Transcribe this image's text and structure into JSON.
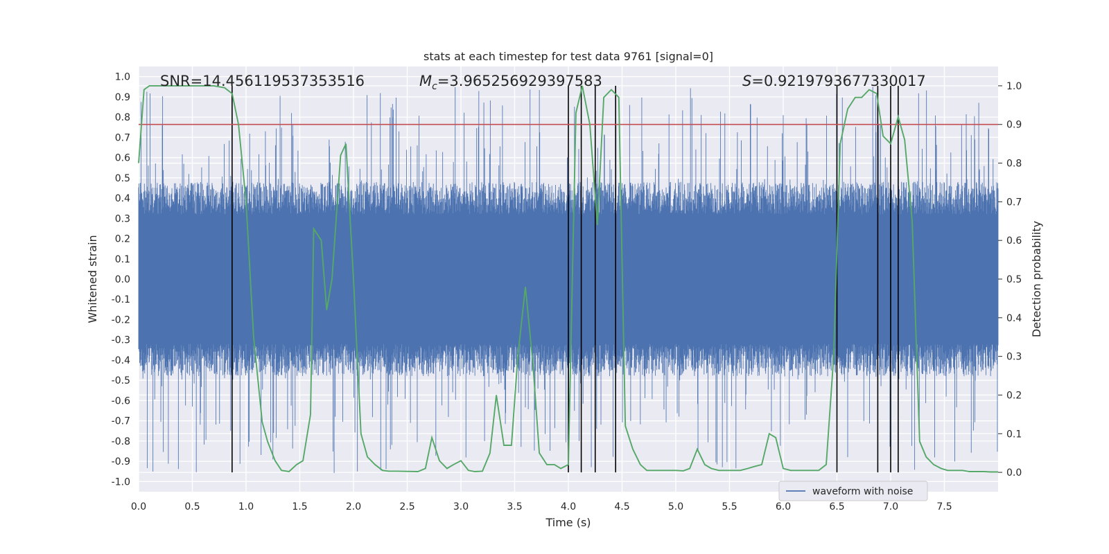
{
  "chart_data": {
    "type": "line",
    "title": "stats at each timestep for test data 9761 [signal=0]",
    "xlabel": "Time (s)",
    "ylabel_left": "Whitened strain",
    "ylabel_right": "Detection probability",
    "xlim": [
      0.0,
      8.0
    ],
    "ylim_left": [
      -1.05,
      1.05
    ],
    "ylim_right": [
      -0.05,
      1.05
    ],
    "x_ticks": [
      "0.0",
      "0.5",
      "1.0",
      "1.5",
      "2.0",
      "2.5",
      "3.0",
      "3.5",
      "4.0",
      "4.5",
      "5.0",
      "5.5",
      "6.0",
      "6.5",
      "7.0",
      "7.5"
    ],
    "y_left_ticks": [
      "1.0",
      "0.9",
      "0.8",
      "0.7",
      "0.6",
      "0.5",
      "0.4",
      "0.3",
      "0.2",
      "0.1",
      "0.0",
      "-0.1",
      "-0.2",
      "-0.3",
      "-0.4",
      "-0.5",
      "-0.6",
      "-0.7",
      "-0.8",
      "-0.9",
      "-1.0"
    ],
    "y_right_ticks": [
      "1.0",
      "0.9",
      "0.8",
      "0.7",
      "0.6",
      "0.5",
      "0.4",
      "0.3",
      "0.2",
      "0.1",
      "0.0"
    ],
    "annotations": {
      "snr_label": "SNR=14.456119537353516",
      "mc_symbol": "M",
      "mc_sub": "c",
      "mc_value": "=3.965256929397583",
      "s_symbol": "S",
      "s_value": "=0.9219793677330017"
    },
    "threshold_line": {
      "value_right_axis": 0.9,
      "color": "#c44e52"
    },
    "vertical_markers_time_s": [
      0.87,
      4.0,
      4.12,
      4.25,
      4.44,
      6.5,
      6.88,
      7.0,
      7.07
    ],
    "series": [
      {
        "name": "waveform with noise",
        "axis": "left",
        "color": "#4c72b0",
        "envelope": {
          "base_amplitude": 0.4,
          "max_peak": 0.95,
          "min_trough": -0.96
        }
      },
      {
        "name": "detection probability",
        "axis": "right",
        "color": "#55a868",
        "x": [
          0.0,
          0.05,
          0.1,
          0.2,
          0.3,
          0.5,
          0.7,
          0.8,
          0.87,
          0.93,
          1.0,
          1.07,
          1.15,
          1.2,
          1.27,
          1.33,
          1.4,
          1.47,
          1.53,
          1.6,
          1.63,
          1.7,
          1.75,
          1.8,
          1.88,
          1.93,
          2.0,
          2.07,
          2.13,
          2.2,
          2.27,
          2.33,
          2.4,
          2.6,
          2.67,
          2.73,
          2.8,
          2.87,
          2.93,
          3.0,
          3.07,
          3.13,
          3.2,
          3.27,
          3.33,
          3.4,
          3.47,
          3.53,
          3.6,
          3.67,
          3.73,
          3.8,
          3.87,
          3.93,
          4.0,
          4.07,
          4.13,
          4.2,
          4.27,
          4.33,
          4.4,
          4.47,
          4.53,
          4.6,
          4.67,
          4.73,
          5.0,
          5.07,
          5.13,
          5.2,
          5.27,
          5.33,
          5.4,
          5.47,
          5.6,
          5.67,
          5.73,
          5.8,
          5.87,
          5.93,
          6.0,
          6.07,
          6.13,
          6.2,
          6.33,
          6.4,
          6.47,
          6.53,
          6.6,
          6.67,
          6.73,
          6.8,
          6.87,
          6.93,
          7.0,
          7.07,
          7.13,
          7.2,
          7.27,
          7.33,
          7.4,
          7.47,
          7.53,
          7.6,
          7.67,
          7.73,
          7.8,
          7.87,
          7.93,
          8.0
        ],
        "values": [
          0.8,
          0.99,
          1.0,
          1.0,
          1.0,
          1.0,
          1.0,
          0.995,
          0.98,
          0.9,
          0.7,
          0.35,
          0.13,
          0.08,
          0.03,
          0.005,
          0.002,
          0.02,
          0.03,
          0.15,
          0.63,
          0.6,
          0.42,
          0.5,
          0.82,
          0.85,
          0.5,
          0.1,
          0.04,
          0.02,
          0.005,
          0.003,
          0.003,
          0.002,
          0.01,
          0.09,
          0.03,
          0.01,
          0.02,
          0.03,
          0.005,
          0.002,
          0.003,
          0.05,
          0.2,
          0.07,
          0.07,
          0.3,
          0.48,
          0.28,
          0.05,
          0.02,
          0.02,
          0.01,
          0.02,
          0.93,
          1.0,
          0.9,
          0.64,
          0.97,
          0.99,
          0.97,
          0.12,
          0.06,
          0.02,
          0.005,
          0.005,
          0.004,
          0.01,
          0.06,
          0.02,
          0.01,
          0.005,
          0.005,
          0.005,
          0.01,
          0.015,
          0.02,
          0.1,
          0.09,
          0.01,
          0.005,
          0.005,
          0.005,
          0.005,
          0.02,
          0.3,
          0.85,
          0.94,
          0.97,
          0.97,
          0.99,
          0.98,
          0.87,
          0.85,
          0.92,
          0.86,
          0.65,
          0.08,
          0.04,
          0.02,
          0.01,
          0.005,
          0.005,
          0.005,
          0.002,
          0.002,
          0.002,
          0.001,
          0.001
        ]
      }
    ],
    "legend": {
      "label": "waveform with noise",
      "position": "bottom-right"
    }
  }
}
